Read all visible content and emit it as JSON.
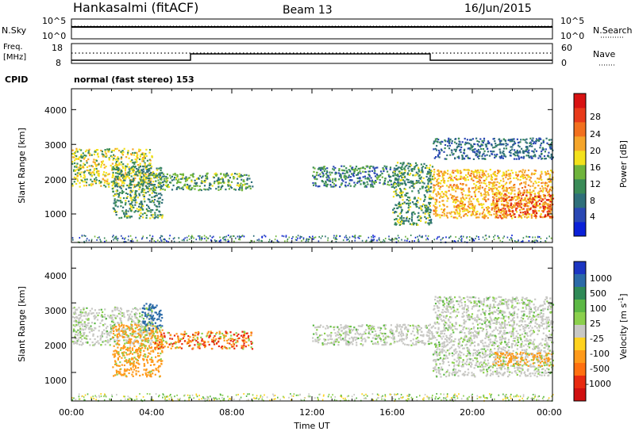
{
  "header": {
    "station": "Hankasalmi (fitACF)",
    "beam": "Beam 13",
    "date": "16/Jun/2015"
  },
  "panels": {
    "nsky_label": "N.Sky",
    "nsky_ticks": [
      "10^5",
      "10^0"
    ],
    "nsearch_label": "N.Search",
    "nsearch_ticks": [
      "10^5",
      "10^0"
    ],
    "freq_label_1": "Freq.",
    "freq_label_2": "[MHz]",
    "freq_ticks": [
      "18",
      "8"
    ],
    "nave_label": "Nave",
    "nave_ticks": [
      "60",
      "0"
    ],
    "cpid_label": "CPID",
    "cpid_text": "normal (fast stereo) 153"
  },
  "axes": {
    "ylabel": "Slant Range [km]",
    "y_ticks": [
      "1000",
      "2000",
      "3000",
      "4000"
    ],
    "x_ticks": [
      "00:00",
      "04:00",
      "08:00",
      "12:00",
      "16:00",
      "20:00",
      "00:00"
    ],
    "xlabel": "Time UT"
  },
  "colorbars": {
    "power_label": "Power [dB]",
    "power_ticks": [
      "4",
      "8",
      "12",
      "16",
      "20",
      "24",
      "28"
    ],
    "velocity_label": "Velocity [m s",
    "velocity_label_sup": "-1",
    "velocity_label_end": "]",
    "velocity_ticks": [
      "1000",
      "500",
      "100",
      "25",
      "-25",
      "-100",
      "-500",
      "-1000"
    ]
  },
  "colors": {
    "power_scale": [
      "#0a20d8",
      "#2a48b4",
      "#2f6f7a",
      "#3a8b57",
      "#6fb43c",
      "#f3e11b",
      "#f5a52a",
      "#f2701e",
      "#e83a1a",
      "#d81212"
    ],
    "velocity_scale": [
      "#1c36c2",
      "#2b6aa8",
      "#2f8a57",
      "#5cb845",
      "#8bd04d",
      "#c8c8c4",
      "#ffd21e",
      "#ff9a1a",
      "#ff7010",
      "#e82a10",
      "#d01010"
    ]
  },
  "chart_data": [
    {
      "type": "heatmap",
      "title": "Power",
      "xlabel": "Time UT",
      "ylabel": "Slant Range [km]",
      "xlim": [
        "00:00",
        "24:00"
      ],
      "ylim": [
        180,
        4600
      ],
      "colorbar_label": "Power [dB]",
      "colorbar_range": [
        0,
        32
      ],
      "regions": [
        {
          "time": [
            "00:00",
            "04:00"
          ],
          "range_km": [
            1800,
            2900
          ],
          "power_db": 16
        },
        {
          "time": [
            "02:00",
            "04:30"
          ],
          "range_km": [
            900,
            2400
          ],
          "power_db": 12
        },
        {
          "time": [
            "04:00",
            "09:00"
          ],
          "range_km": [
            1700,
            2200
          ],
          "power_db": 14
        },
        {
          "time": [
            "12:00",
            "16:30"
          ],
          "range_km": [
            1800,
            2400
          ],
          "power_db": 10
        },
        {
          "time": [
            "16:00",
            "18:00"
          ],
          "range_km": [
            700,
            2500
          ],
          "power_db": 12
        },
        {
          "time": [
            "18:00",
            "24:00"
          ],
          "range_km": [
            900,
            2300
          ],
          "power_db": 22
        },
        {
          "time": [
            "18:00",
            "24:00"
          ],
          "range_km": [
            2600,
            3200
          ],
          "power_db": 8
        },
        {
          "time": [
            "21:00",
            "24:00"
          ],
          "range_km": [
            900,
            1600
          ],
          "power_db": 28
        }
      ]
    },
    {
      "type": "heatmap",
      "title": "Velocity",
      "xlabel": "Time UT",
      "ylabel": "Slant Range [km]",
      "xlim": [
        "00:00",
        "24:00"
      ],
      "ylim": [
        180,
        4600
      ],
      "colorbar_label": "Velocity [m s^-1]",
      "colorbar_range": [
        -1000,
        1000
      ],
      "regions": [
        {
          "time": [
            "00:00",
            "04:00"
          ],
          "range_km": [
            1800,
            2900
          ],
          "velocity": 0
        },
        {
          "time": [
            "02:00",
            "04:30"
          ],
          "range_km": [
            900,
            2400
          ],
          "velocity": -300
        },
        {
          "time": [
            "04:00",
            "09:00"
          ],
          "range_km": [
            1700,
            2200
          ],
          "velocity": -500
        },
        {
          "time": [
            "03:30",
            "04:30"
          ],
          "range_km": [
            2200,
            3000
          ],
          "velocity": 500
        },
        {
          "time": [
            "12:00",
            "18:00"
          ],
          "range_km": [
            1800,
            2400
          ],
          "velocity": 0
        },
        {
          "time": [
            "18:00",
            "24:00"
          ],
          "range_km": [
            900,
            3200
          ],
          "velocity": 0
        },
        {
          "time": [
            "21:00",
            "24:00"
          ],
          "range_km": [
            1200,
            1600
          ],
          "velocity": -300
        }
      ]
    }
  ]
}
